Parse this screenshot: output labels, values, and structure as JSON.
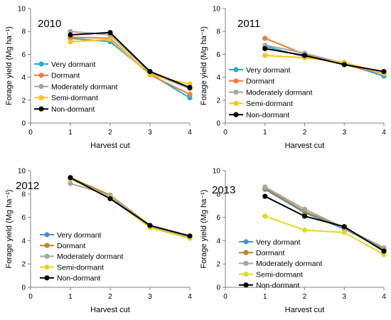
{
  "chart_data": [
    {
      "type": "line",
      "year_label": "2010",
      "xlabel": "Harvest cut",
      "ylabel": "Forage yield (Mg ha⁻¹)",
      "x": [
        1,
        2,
        3,
        4
      ],
      "xlim": [
        0,
        4
      ],
      "ylim": [
        0,
        10
      ],
      "xticks": [
        "0",
        "1",
        "2",
        "3",
        "4"
      ],
      "yticks": [
        "0",
        "2",
        "4",
        "6",
        "8",
        "10"
      ],
      "grid": false,
      "legend_position": "left",
      "series": [
        {
          "name": "Very dormant",
          "color": "#2aa9d8",
          "values": [
            7.4,
            7.1,
            4.3,
            2.2
          ]
        },
        {
          "name": "Dormant",
          "color": "#f07c36",
          "values": [
            7.5,
            7.4,
            4.2,
            2.5
          ]
        },
        {
          "name": "Moderately dormant",
          "color": "#a6a6a6",
          "values": [
            8.0,
            7.7,
            4.4,
            3.0
          ]
        },
        {
          "name": "Semi-dormant",
          "color": "#fdc21c",
          "values": [
            7.1,
            7.3,
            4.2,
            3.4
          ]
        },
        {
          "name": "Non-dormant",
          "color": "#000000",
          "values": [
            7.7,
            7.9,
            4.5,
            3.1
          ]
        }
      ]
    },
    {
      "type": "line",
      "year_label": "2011",
      "xlabel": "Harvest cut",
      "ylabel": "Forage yield (Mg ha⁻¹)",
      "x": [
        1,
        2,
        3,
        4
      ],
      "xlim": [
        0,
        4
      ],
      "ylim": [
        0,
        10
      ],
      "xticks": [
        "0",
        "1",
        "2",
        "3",
        "4"
      ],
      "yticks": [
        "0",
        "2",
        "4",
        "6",
        "8",
        "10"
      ],
      "grid": false,
      "legend_position": "bottom-center",
      "series": [
        {
          "name": "Very dormant",
          "color": "#2aa9d8",
          "values": [
            6.7,
            5.8,
            5.2,
            4.1
          ]
        },
        {
          "name": "Dormant",
          "color": "#f07c36",
          "values": [
            7.4,
            6.0,
            5.1,
            4.3
          ]
        },
        {
          "name": "Moderately dormant",
          "color": "#a6a6a6",
          "values": [
            6.8,
            6.1,
            5.2,
            4.4
          ]
        },
        {
          "name": "Semi-dormant",
          "color": "#fdc21c",
          "values": [
            5.9,
            5.7,
            5.3,
            4.3
          ]
        },
        {
          "name": "Non-dormant",
          "color": "#000000",
          "values": [
            6.5,
            5.9,
            5.1,
            4.5
          ]
        }
      ]
    },
    {
      "type": "line",
      "year_label": "2012",
      "xlabel": "Harvest cut",
      "ylabel": "Forage yield (Mg ha⁻¹)",
      "x": [
        1,
        2,
        3,
        4
      ],
      "xlim": [
        0,
        4
      ],
      "ylim": [
        0,
        10
      ],
      "xticks": [
        "0",
        "1",
        "2",
        "3",
        "4"
      ],
      "yticks": [
        "0",
        "2",
        "4",
        "6",
        "8",
        "10"
      ],
      "grid": false,
      "legend_position": "bottom-center",
      "series": [
        {
          "name": "Very dormant",
          "color": "#4a8fd3",
          "values": [
            9.3,
            7.7,
            5.3,
            4.3
          ]
        },
        {
          "name": "Dormant",
          "color": "#b8882a",
          "values": [
            9.4,
            7.9,
            5.3,
            4.3
          ]
        },
        {
          "name": "Moderately dormant",
          "color": "#a6a6a6",
          "values": [
            8.9,
            7.9,
            5.2,
            4.3
          ]
        },
        {
          "name": "Semi-dormant",
          "color": "#e2d91e",
          "values": [
            9.3,
            7.7,
            5.1,
            4.2
          ]
        },
        {
          "name": "Non-dormant",
          "color": "#000000",
          "values": [
            9.4,
            7.6,
            5.3,
            4.4
          ]
        }
      ]
    },
    {
      "type": "line",
      "year_label": "2013",
      "xlabel": "Harvest cut",
      "ylabel": "Forage yield (Mg ha⁻¹)",
      "x": [
        1,
        2,
        3,
        4
      ],
      "xlim": [
        0,
        4
      ],
      "ylim": [
        0,
        10
      ],
      "xticks": [
        "0",
        "1",
        "2",
        "3",
        "4"
      ],
      "yticks": [
        "0",
        "2",
        "4",
        "6",
        "8",
        "10"
      ],
      "grid": false,
      "legend_position": "bottom-center",
      "series": [
        {
          "name": "Very dormant",
          "color": "#4a8fd3",
          "values": [
            8.4,
            6.4,
            5.0,
            3.3
          ]
        },
        {
          "name": "Dormant",
          "color": "#b8882a",
          "values": [
            8.5,
            6.5,
            5.1,
            3.2
          ]
        },
        {
          "name": "Moderately dormant",
          "color": "#a6a6a6",
          "values": [
            8.6,
            6.7,
            5.1,
            3.4
          ]
        },
        {
          "name": "Semi-dormant",
          "color": "#e2d91e",
          "values": [
            6.1,
            4.9,
            4.7,
            2.8
          ]
        },
        {
          "name": "Non-dormant",
          "color": "#000000",
          "values": [
            7.8,
            6.1,
            5.2,
            3.1
          ]
        }
      ]
    }
  ]
}
